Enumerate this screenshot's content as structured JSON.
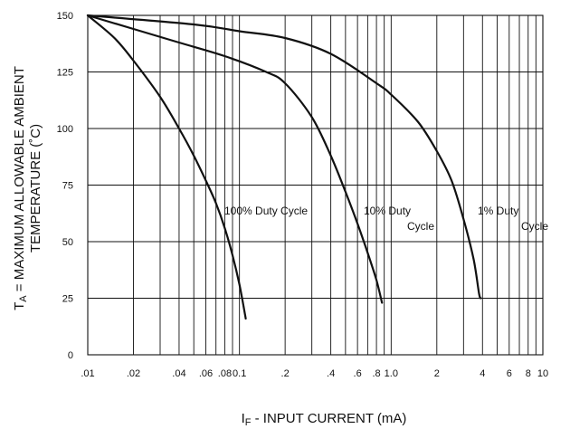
{
  "chart_data": {
    "type": "line",
    "title": "",
    "xscale": "log",
    "xlim": [
      0.01,
      10
    ],
    "ylim": [
      0,
      150
    ],
    "grid": true,
    "xlabel": {
      "main": "I",
      "sub": "F",
      "rest": " - INPUT CURRENT (mA)"
    },
    "ylabel": {
      "line1": {
        "main": "T",
        "sub": "A",
        "rest": " = MAXIMUM ALLOWABLE AMBIENT"
      },
      "line2": "TEMPERATURE (˚C)"
    },
    "x_ticks": [
      {
        "value": 0.01,
        "label": ".01"
      },
      {
        "value": 0.02,
        "label": ".02"
      },
      {
        "value": 0.04,
        "label": ".04"
      },
      {
        "value": 0.06,
        "label": ".06"
      },
      {
        "value": 0.08,
        "label": ".08"
      },
      {
        "value": 0.1,
        "label": "0.1"
      },
      {
        "value": 0.2,
        "label": ".2"
      },
      {
        "value": 0.4,
        "label": ".4"
      },
      {
        "value": 0.6,
        "label": ".6"
      },
      {
        "value": 0.8,
        "label": ".8"
      },
      {
        "value": 1.0,
        "label": "1.0"
      },
      {
        "value": 2,
        "label": "2"
      },
      {
        "value": 4,
        "label": "4"
      },
      {
        "value": 6,
        "label": "6"
      },
      {
        "value": 8,
        "label": "8"
      },
      {
        "value": 10,
        "label": "10"
      }
    ],
    "x_gridlines": [
      0.02,
      0.03,
      0.04,
      0.05,
      0.06,
      0.07,
      0.08,
      0.09,
      0.1,
      0.2,
      0.3,
      0.4,
      0.5,
      0.6,
      0.7,
      0.8,
      0.9,
      1.0,
      2,
      3,
      4,
      5,
      6,
      7,
      8,
      9,
      10
    ],
    "y_ticks": [
      0,
      25,
      50,
      75,
      100,
      125,
      150
    ],
    "series": [
      {
        "name": "100% Duty Cycle",
        "label_lines": [
          "100% Duty Cycle"
        ],
        "points": [
          [
            0.01,
            150
          ],
          [
            0.015,
            140
          ],
          [
            0.02,
            130
          ],
          [
            0.03,
            114
          ],
          [
            0.04,
            100
          ],
          [
            0.05,
            88
          ],
          [
            0.06,
            77
          ],
          [
            0.07,
            67
          ],
          [
            0.08,
            56
          ],
          [
            0.09,
            44
          ],
          [
            0.1,
            31
          ],
          [
            0.11,
            16
          ]
        ]
      },
      {
        "name": "10% Duty Cycle",
        "label_lines": [
          "10% Duty",
          "Cycle"
        ],
        "points": [
          [
            0.01,
            150
          ],
          [
            0.02,
            144
          ],
          [
            0.04,
            138
          ],
          [
            0.08,
            132
          ],
          [
            0.15,
            125
          ],
          [
            0.2,
            120
          ],
          [
            0.3,
            105
          ],
          [
            0.4,
            88
          ],
          [
            0.5,
            72
          ],
          [
            0.6,
            58
          ],
          [
            0.7,
            45
          ],
          [
            0.8,
            33
          ],
          [
            0.87,
            23
          ]
        ]
      },
      {
        "name": "1% Duty Cycle",
        "label_lines": [
          "1% Duty",
          "Cycle"
        ],
        "points": [
          [
            0.01,
            150
          ],
          [
            0.05,
            146
          ],
          [
            0.1,
            143
          ],
          [
            0.2,
            140
          ],
          [
            0.4,
            133
          ],
          [
            0.8,
            120
          ],
          [
            1.0,
            115
          ],
          [
            1.5,
            103
          ],
          [
            2,
            90
          ],
          [
            2.5,
            77
          ],
          [
            3,
            60
          ],
          [
            3.5,
            42
          ],
          [
            3.8,
            27
          ],
          [
            3.9,
            25
          ]
        ]
      }
    ]
  }
}
